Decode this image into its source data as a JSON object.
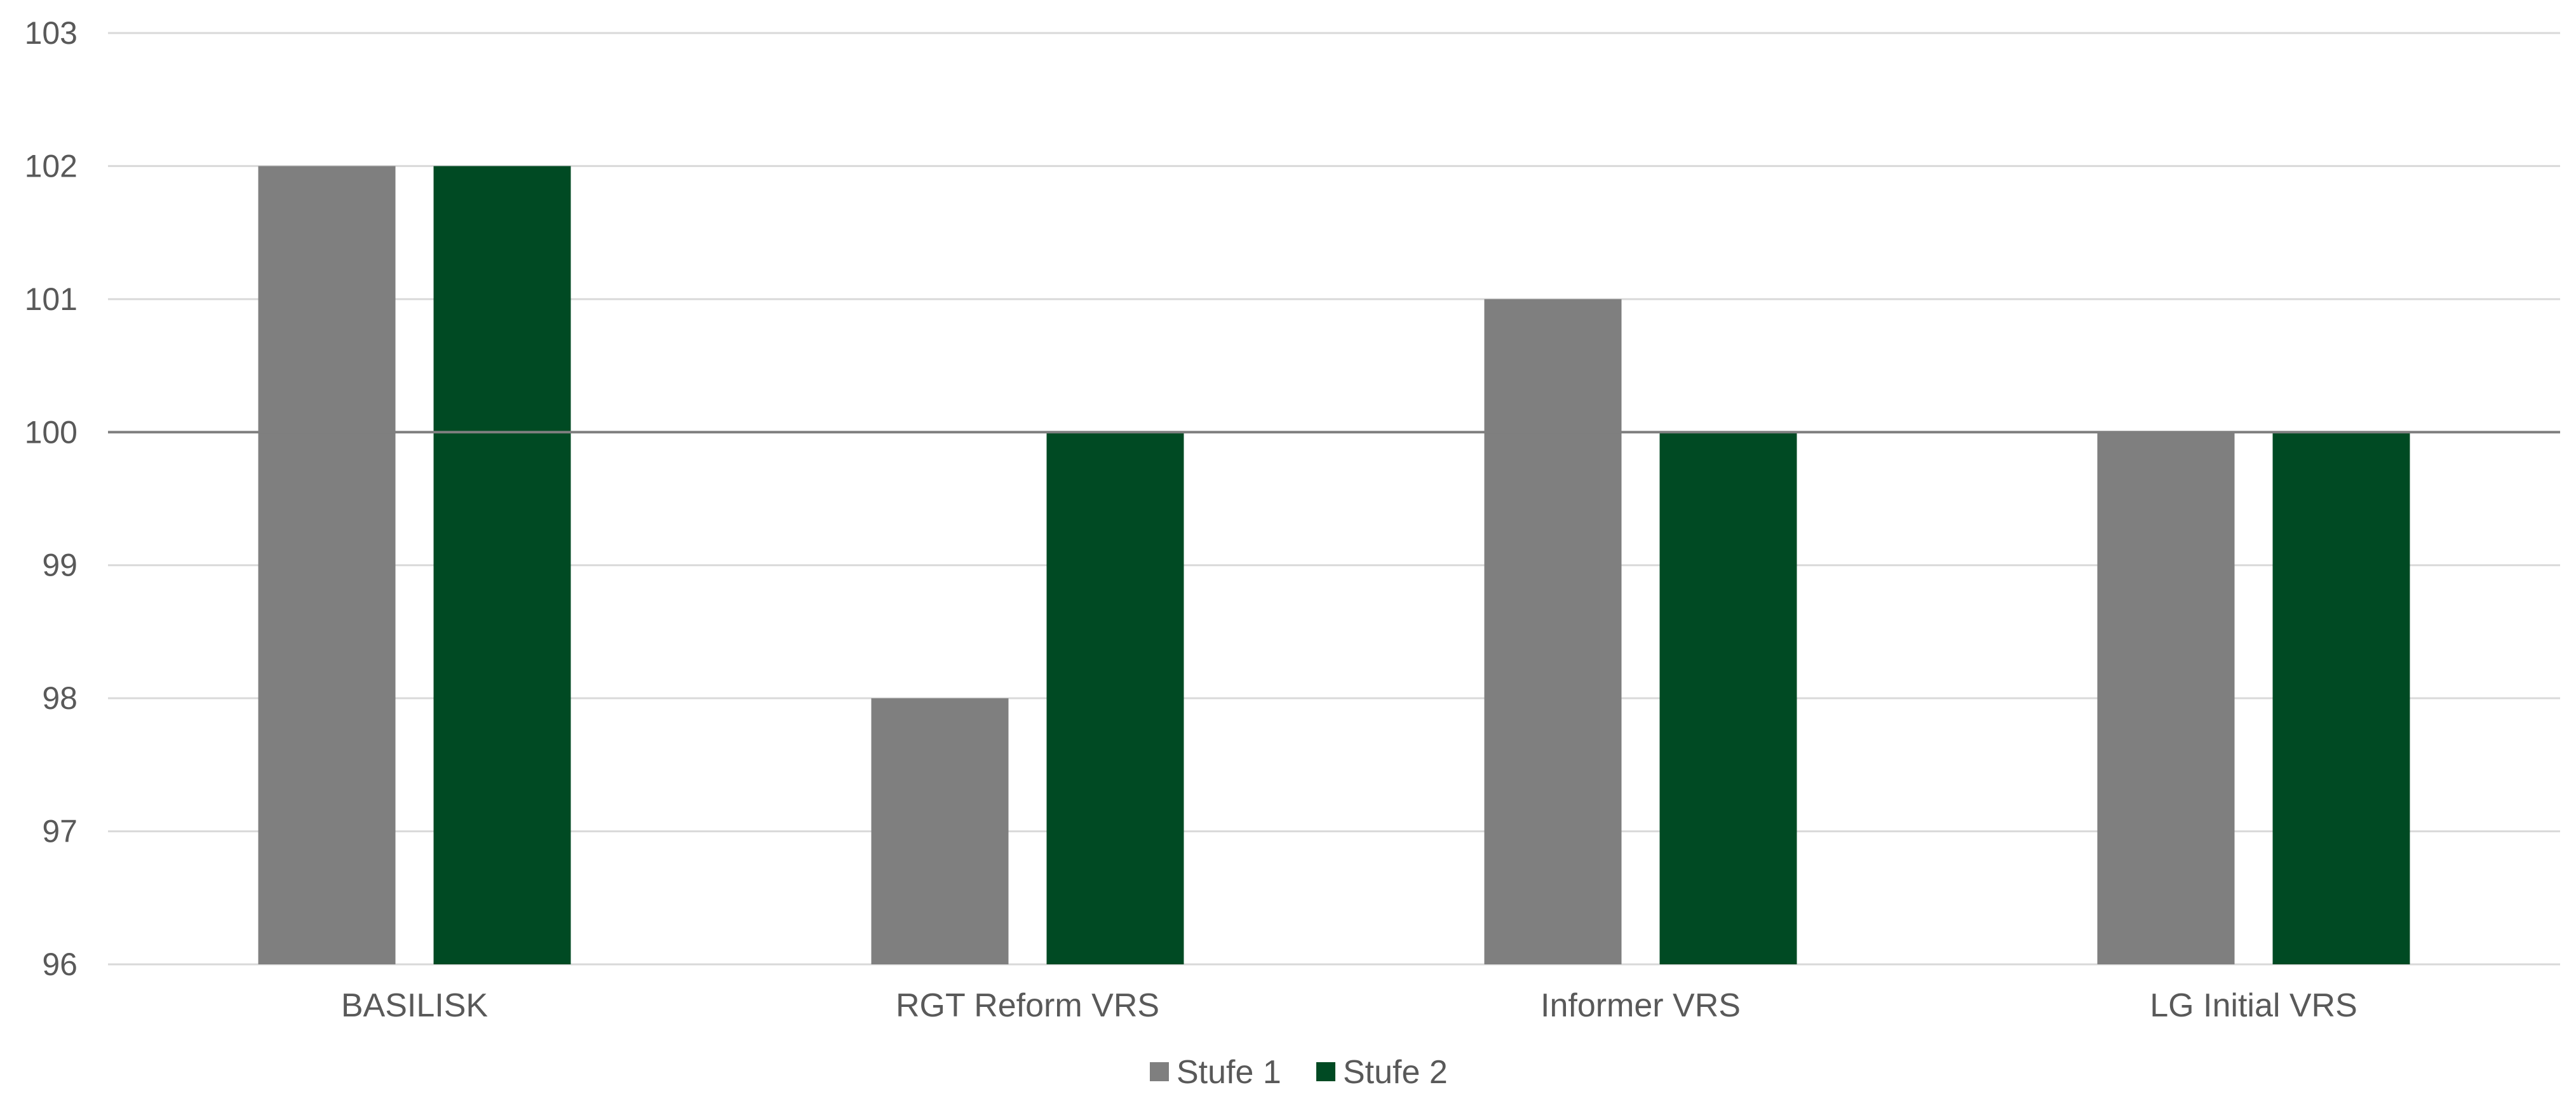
{
  "chart_data": {
    "type": "bar",
    "categories": [
      "BASILISK",
      "RGT Reform VRS",
      "Informer VRS",
      "LG Initial VRS"
    ],
    "series": [
      {
        "name": "Stufe 1",
        "values": [
          102,
          98,
          101,
          100
        ],
        "color": "#7f7f7f"
      },
      {
        "name": "Stufe 2",
        "values": [
          102,
          100,
          100,
          100
        ],
        "color": "#004a23"
      }
    ],
    "ylim": [
      96,
      103
    ],
    "yticks": [
      96,
      97,
      98,
      99,
      100,
      101,
      102,
      103
    ],
    "reference_line": 100,
    "grid": true,
    "legend": "bottom-center",
    "title": "",
    "xlabel": "",
    "ylabel": ""
  }
}
